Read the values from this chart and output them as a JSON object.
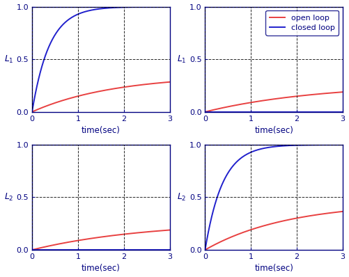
{
  "subplots": [
    {
      "row": 0,
      "col": 0,
      "ylabel": "$L_1$",
      "open_tau": 1.8,
      "open_gain": 0.35,
      "closed_tau": 0.38,
      "closed_gain": 1.0,
      "has_legend": false,
      "show_closed": true
    },
    {
      "row": 0,
      "col": 1,
      "ylabel": "$L_1$",
      "open_tau": 2.5,
      "open_gain": 0.27,
      "closed_tau": 0.0,
      "closed_gain": 0.0,
      "has_legend": true,
      "show_closed": true
    },
    {
      "row": 1,
      "col": 0,
      "ylabel": "$L_2$",
      "open_tau": 2.5,
      "open_gain": 0.27,
      "closed_tau": 0.0,
      "closed_gain": 0.0,
      "has_legend": false,
      "show_closed": false
    },
    {
      "row": 1,
      "col": 1,
      "ylabel": "$L_2$",
      "open_tau": 1.8,
      "open_gain": 0.45,
      "closed_tau": 0.38,
      "closed_gain": 1.0,
      "has_legend": false,
      "show_closed": true
    }
  ],
  "open_loop_color": "#e84040",
  "closed_loop_color": "#2020cc",
  "xlabel": "time(sec)",
  "bg_color": "#ffffff",
  "spine_color": "#000080",
  "tick_color": "#000080",
  "label_color": "#000080",
  "grid_color": "#000000",
  "legend_labels": [
    "open loop",
    "closed loop"
  ]
}
